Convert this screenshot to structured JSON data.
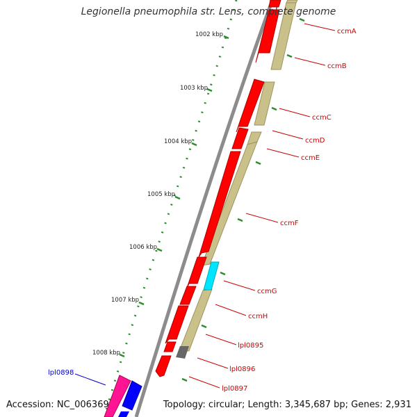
{
  "title": "Legionella pneumophila str. Lens, complete genome",
  "footer": {
    "accession": "Accession: NC_006369",
    "topology": "Topology: circular; Length: 3,345,687 bp; Genes: 2,931"
  },
  "colors": {
    "backbone": "#8c8c8c",
    "forward_cds": "#ff0000",
    "reverse_cds": "#c9c08a",
    "tick": "#2e8b2e",
    "label_red": "#cc0000",
    "label_blue": "#0000cc"
  },
  "kbp_labels": [
    "1002 kbp",
    "1003 kbp",
    "1004 kbp",
    "1005 kbp",
    "1006 kbp",
    "1007 kbp",
    "1008 kbp"
  ],
  "gene_labels": [
    {
      "id": "ccmA",
      "text": "ccmA",
      "color": "red"
    },
    {
      "id": "ccmB",
      "text": "ccmB",
      "color": "red"
    },
    {
      "id": "ccmC",
      "text": "ccmC",
      "color": "red"
    },
    {
      "id": "ccmD",
      "text": "ccmD",
      "color": "red"
    },
    {
      "id": "ccmE",
      "text": "ccmE",
      "color": "red"
    },
    {
      "id": "ccmF",
      "text": "ccmF",
      "color": "red"
    },
    {
      "id": "ccmG",
      "text": "ccmG",
      "color": "red"
    },
    {
      "id": "ccmH",
      "text": "ccmH",
      "color": "red"
    },
    {
      "id": "lpl0895",
      "text": "lpl0895",
      "color": "red"
    },
    {
      "id": "lpl0896",
      "text": "lpl0896",
      "color": "red"
    },
    {
      "id": "lpl0897",
      "text": "lpl0897",
      "color": "red"
    },
    {
      "id": "lpl0898",
      "text": "lpl0898",
      "color": "blue"
    }
  ]
}
